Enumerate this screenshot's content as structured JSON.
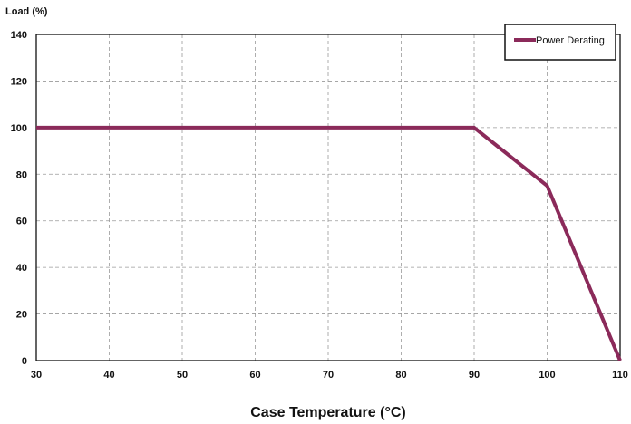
{
  "chart_data": {
    "type": "line",
    "title": "",
    "xlabel": "Case Temperature (°C)",
    "ylabel": "Load (%)",
    "xlim": [
      30,
      110
    ],
    "ylim": [
      0,
      140
    ],
    "xticks": [
      30,
      40,
      50,
      60,
      70,
      80,
      90,
      100,
      110
    ],
    "yticks": [
      0,
      20,
      40,
      60,
      80,
      100,
      120,
      140
    ],
    "grid": true,
    "legend": "top-right",
    "series": [
      {
        "name": "Power Derating",
        "color": "#8b2a5a",
        "points": [
          {
            "x": 30,
            "y": 100
          },
          {
            "x": 90,
            "y": 100
          },
          {
            "x": 100,
            "y": 75
          },
          {
            "x": 110,
            "y": 0
          }
        ]
      }
    ]
  }
}
